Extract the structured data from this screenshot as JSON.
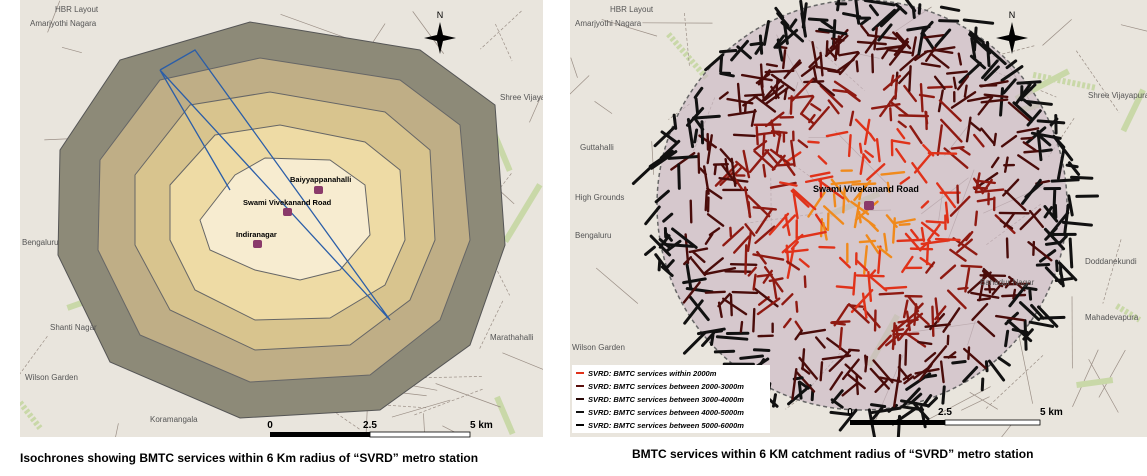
{
  "left_map": {
    "places": [
      "HBR Layout",
      "Amarjyothi Nagara",
      "Shree Vijayapura",
      "Bengaluru",
      "Shanti Nagar",
      "Wilson Garden",
      "Koramangala",
      "Marathahalli"
    ],
    "station_labels": [
      "Baiyyappanahalli",
      "Swami Vivekanand Road",
      "Indiranagar"
    ],
    "north": "N",
    "scale": [
      "0",
      "2.5",
      "5 km"
    ],
    "caption": "Isochrones showing BMTC services  within 6 Km radius of “SVRD” metro station"
  },
  "right_map": {
    "places": [
      "HBR Layout",
      "Amarjyothi Nagara",
      "Shree Vijayapura",
      "Bengaluru",
      "Guttahalli",
      "High Grounds",
      "Doddanekundi",
      "Wilson Garden",
      "Mahadevapura",
      "Bahadur Nagar"
    ],
    "station_label": "Swami Vivekanand Road",
    "north": "N",
    "legend": [
      "SVRD: BMTC services within 2000m",
      "SVRD: BMTC services between 2000-3000m",
      "SVRD: BMTC services between 3000-4000m",
      "SVRD: BMTC services between 4000-5000m",
      "SVRD: BMTC services between 5000-6000m"
    ],
    "scale": [
      "0",
      "2.5",
      "5 km"
    ],
    "caption": "BMTC services within 6 KM catchment radius of “SVRD” metro station"
  }
}
